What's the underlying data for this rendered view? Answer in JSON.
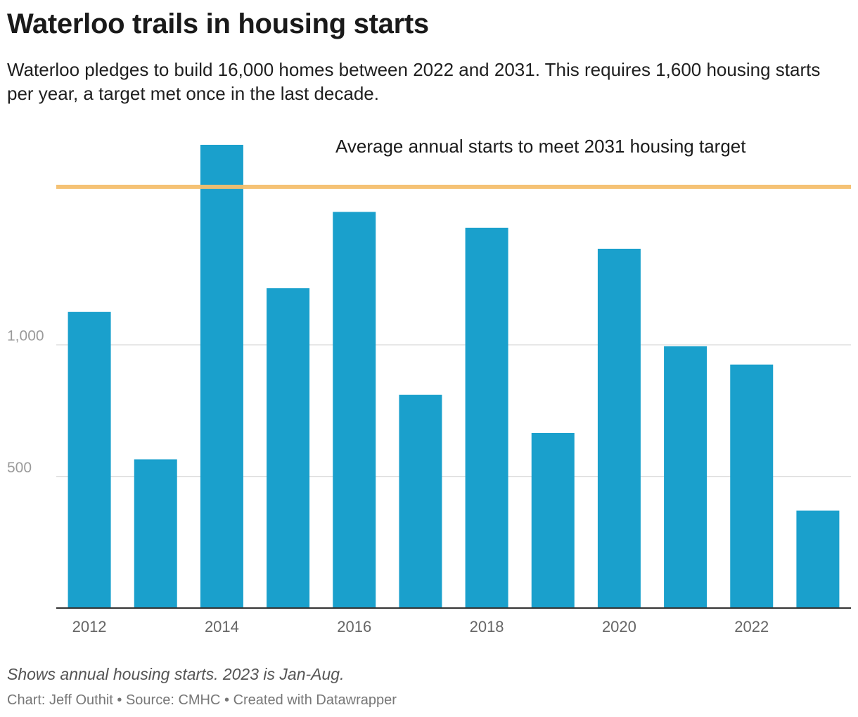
{
  "header": {
    "title": "Waterloo trails in housing starts",
    "subtitle": "Waterloo pledges to build 16,000 homes between 2022 and 2031. This requires 1,600 housing starts per year, a target met once in the last decade."
  },
  "footer": {
    "note": "Shows annual housing starts. 2023 is Jan-Aug.",
    "credit_prefix": "Chart: ",
    "author": "Jeff Outhit",
    "source_prefix": "Source: ",
    "source": "CMHC",
    "created_with": "Created with Datawrapper",
    "separator": " • "
  },
  "chart_data": {
    "type": "bar",
    "categories": [
      "2012",
      "2013",
      "2014",
      "2015",
      "2016",
      "2017",
      "2018",
      "2019",
      "2020",
      "2021",
      "2022",
      "2023"
    ],
    "values": [
      1125,
      565,
      1760,
      1215,
      1505,
      810,
      1445,
      665,
      1365,
      995,
      925,
      370
    ],
    "x_tick_labels": [
      "2012",
      "2014",
      "2016",
      "2018",
      "2020",
      "2022"
    ],
    "y_ticks": [
      500,
      1000
    ],
    "y_tick_labels": [
      "500",
      "1,000"
    ],
    "ylim": [
      0,
      1760
    ],
    "grid": true,
    "bar_color": "#1aa0cc",
    "target": {
      "value": 1600,
      "label": "Average annual starts to meet 2031 housing target",
      "color": "#f5bf6e"
    }
  }
}
